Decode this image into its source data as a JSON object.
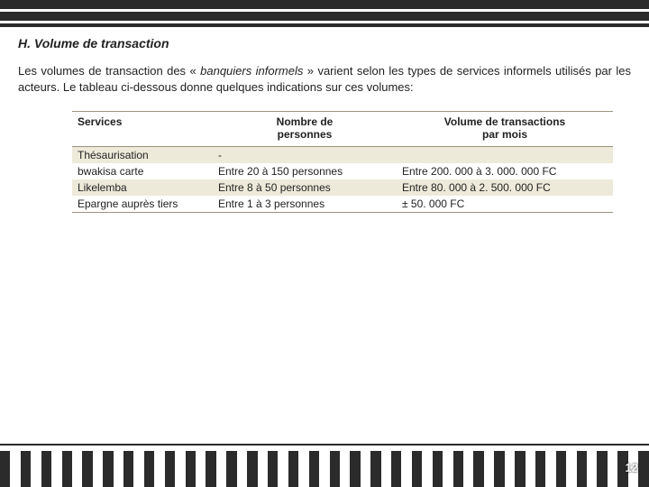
{
  "heading": "H. Volume de transaction",
  "para_parts": {
    "p1": "Les volumes de transaction des « ",
    "em": "banquiers informels",
    "p2": " » varient selon les types de services informels utilisés par les acteurs. Le tableau ci-dessous donne quelques indications sur ces volumes:"
  },
  "table": {
    "columns": [
      "Services",
      "Nombre de personnes",
      "Volume de transactions par mois"
    ],
    "col_header_breaks": {
      "1": [
        "Nombre de",
        "personnes"
      ],
      "2": [
        "Volume de transactions",
        "par mois"
      ]
    },
    "rows": [
      [
        "Thésaurisation",
        "-",
        ""
      ],
      [
        "bwakisa carte",
        "Entre 20 à 150 personnes",
        "Entre 200. 000 à 3. 000. 000 FC"
      ],
      [
        "Likelemba",
        "Entre 8 à 50 personnes",
        "Entre 80. 000 à 2. 500. 000 FC"
      ],
      [
        "Epargne auprès tiers",
        "Entre 1 à 3 personnes",
        "± 50. 000 FC"
      ]
    ],
    "row_alt_bg": "#edeada",
    "border_color": "#9a9580",
    "header_fontsize": 12,
    "body_fontsize": 12,
    "col_widths_pct": [
      26,
      34,
      40
    ]
  },
  "page_number": "12",
  "colors": {
    "bar": "#2b2b2b",
    "text": "#222222",
    "bg": "#ffffff"
  }
}
